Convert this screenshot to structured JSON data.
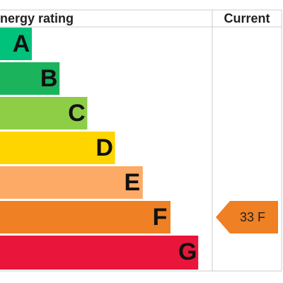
{
  "header": {
    "title": "Energy rating",
    "current": "Current"
  },
  "bands": [
    {
      "letter": "A",
      "color": "#00c27a"
    },
    {
      "letter": "B",
      "color": "#1bb35b"
    },
    {
      "letter": "C",
      "color": "#8dce46"
    },
    {
      "letter": "D",
      "color": "#ffd500"
    },
    {
      "letter": "E",
      "color": "#fcaa65"
    },
    {
      "letter": "F",
      "color": "#ef8023"
    },
    {
      "letter": "G",
      "color": "#e9153b"
    }
  ],
  "current": {
    "label": "33 F",
    "band": 5,
    "color": "#ef8023"
  }
}
